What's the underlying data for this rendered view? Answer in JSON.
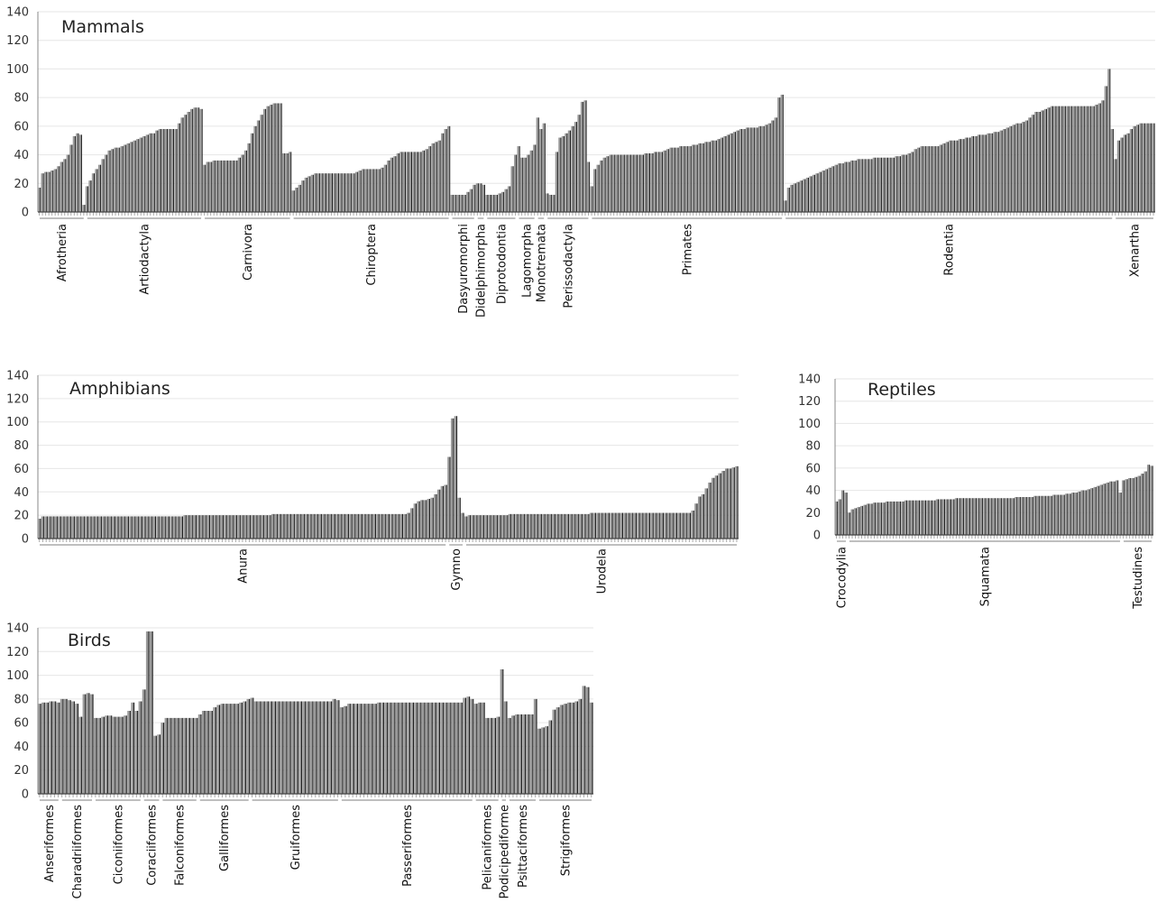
{
  "chart_data": [
    {
      "type": "bar",
      "title": "Mammals",
      "ylim": [
        0,
        140
      ],
      "yticks": [
        0,
        20,
        40,
        60,
        80,
        100,
        120,
        140
      ],
      "grid": true,
      "groups": [
        {
          "name": "Afrotheria",
          "values": [
            17,
            27,
            28,
            28,
            29,
            30,
            32,
            35,
            37,
            40,
            47,
            53,
            55,
            54,
            5
          ]
        },
        {
          "name": "Artiodactyla",
          "values": [
            18,
            22,
            27,
            30,
            33,
            37,
            40,
            43,
            44,
            45,
            45,
            46,
            47,
            48,
            49,
            50,
            51,
            52,
            53,
            54,
            55,
            55,
            57,
            58,
            58,
            58,
            58,
            58,
            58,
            62,
            66,
            68,
            70,
            72,
            73,
            73,
            72
          ]
        },
        {
          "name": "Carnivora",
          "values": [
            33,
            35,
            35,
            36,
            36,
            36,
            36,
            36,
            36,
            36,
            36,
            38,
            40,
            43,
            48,
            55,
            60,
            64,
            68,
            72,
            74,
            75,
            76,
            76,
            76,
            41,
            41,
            42
          ]
        },
        {
          "name": "Chiroptera",
          "values": [
            15,
            17,
            19,
            22,
            24,
            25,
            26,
            27,
            27,
            27,
            27,
            27,
            27,
            27,
            27,
            27,
            27,
            27,
            27,
            27,
            28,
            29,
            30,
            30,
            30,
            30,
            30,
            30,
            31,
            33,
            36,
            38,
            39,
            41,
            42,
            42,
            42,
            42,
            42,
            42,
            42,
            43,
            44,
            46,
            48,
            49,
            50,
            55,
            58,
            60
          ]
        },
        {
          "name": "Dasyuromorphi",
          "values": [
            12,
            12,
            12,
            12,
            12,
            14,
            16,
            19
          ]
        },
        {
          "name": "Didelphimorpha",
          "values": [
            20,
            20,
            19
          ]
        },
        {
          "name": "Diprotodontia",
          "values": [
            12,
            12,
            12,
            12,
            13,
            14,
            16,
            18,
            32,
            40
          ]
        },
        {
          "name": "Lagomorpha",
          "values": [
            46,
            38,
            38,
            40,
            43,
            47
          ]
        },
        {
          "name": "Monotremata",
          "values": [
            66,
            58,
            62
          ]
        },
        {
          "name": "Perissodactyla",
          "values": [
            13,
            12,
            12,
            42,
            52,
            53,
            55,
            57,
            60,
            63,
            68,
            77,
            78,
            35
          ]
        },
        {
          "name": "Primates",
          "values": [
            18,
            30,
            33,
            36,
            38,
            39,
            40,
            40,
            40,
            40,
            40,
            40,
            40,
            40,
            40,
            40,
            40,
            41,
            41,
            41,
            42,
            42,
            42,
            43,
            44,
            45,
            45,
            45,
            46,
            46,
            46,
            46,
            47,
            47,
            48,
            48,
            49,
            49,
            50,
            50,
            51,
            52,
            53,
            54,
            55,
            56,
            57,
            58,
            58,
            59,
            59,
            59,
            59,
            60,
            60,
            61,
            62,
            64,
            66,
            80,
            82
          ]
        },
        {
          "name": "Rodentia",
          "values": [
            8,
            17,
            19,
            20,
            21,
            22,
            23,
            24,
            25,
            26,
            27,
            28,
            29,
            30,
            31,
            32,
            33,
            34,
            34,
            35,
            35,
            36,
            36,
            37,
            37,
            37,
            37,
            37,
            38,
            38,
            38,
            38,
            38,
            38,
            38,
            39,
            39,
            40,
            40,
            41,
            42,
            44,
            45,
            46,
            46,
            46,
            46,
            46,
            46,
            47,
            48,
            49,
            50,
            50,
            50,
            51,
            51,
            52,
            52,
            53,
            53,
            54,
            54,
            54,
            55,
            55,
            56,
            56,
            57,
            58,
            59,
            60,
            61,
            62,
            62,
            63,
            64,
            66,
            68,
            70,
            70,
            71,
            72,
            73,
            74,
            74,
            74,
            74,
            74,
            74,
            74,
            74,
            74,
            74,
            74,
            74,
            74,
            74,
            75,
            76,
            78,
            88,
            100,
            58
          ]
        },
        {
          "name": "Xenartha",
          "values": [
            37,
            50,
            52,
            54,
            55,
            58,
            60,
            61,
            62,
            62,
            62,
            62,
            62
          ]
        }
      ]
    },
    {
      "type": "bar",
      "title": "Amphibians",
      "ylim": [
        0,
        140
      ],
      "yticks": [
        0,
        20,
        40,
        60,
        80,
        100,
        120,
        140
      ],
      "grid": true,
      "groups": [
        {
          "name": "Anura",
          "values": [
            17,
            19,
            19,
            19,
            19,
            19,
            19,
            19,
            19,
            19,
            19,
            19,
            19,
            19,
            19,
            19,
            19,
            19,
            19,
            19,
            19,
            19,
            19,
            19,
            19,
            19,
            19,
            19,
            19,
            19,
            19,
            19,
            19,
            19,
            19,
            19,
            19,
            19,
            19,
            19,
            19,
            19,
            19,
            20,
            20,
            20,
            20,
            20,
            20,
            20,
            20,
            20,
            20,
            20,
            20,
            20,
            20,
            20,
            20,
            20,
            20,
            20,
            20,
            20,
            20,
            20,
            20,
            20,
            20,
            21,
            21,
            21,
            21,
            21,
            21,
            21,
            21,
            21,
            21,
            21,
            21,
            21,
            21,
            21,
            21,
            21,
            21,
            21,
            21,
            21,
            21,
            21,
            21,
            21,
            21,
            21,
            21,
            21,
            21,
            21,
            21,
            21,
            21,
            21,
            21,
            21,
            21,
            21,
            21,
            22,
            26,
            30,
            32,
            33,
            33,
            34,
            35,
            38,
            42,
            45,
            46
          ]
        },
        {
          "name": "Gymno",
          "values": [
            70,
            103,
            105,
            35,
            22
          ]
        },
        {
          "name": "Urodela",
          "values": [
            19,
            20,
            20,
            20,
            20,
            20,
            20,
            20,
            20,
            20,
            20,
            20,
            20,
            21,
            21,
            21,
            21,
            21,
            21,
            21,
            21,
            21,
            21,
            21,
            21,
            21,
            21,
            21,
            21,
            21,
            21,
            21,
            21,
            21,
            21,
            21,
            21,
            22,
            22,
            22,
            22,
            22,
            22,
            22,
            22,
            22,
            22,
            22,
            22,
            22,
            22,
            22,
            22,
            22,
            22,
            22,
            22,
            22,
            22,
            22,
            22,
            22,
            22,
            22,
            22,
            22,
            22,
            24,
            30,
            36,
            38,
            43,
            48,
            52,
            54,
            56,
            58,
            60,
            60,
            61,
            62
          ]
        }
      ]
    },
    {
      "type": "bar",
      "title": "Reptiles",
      "ylim": [
        0,
        140
      ],
      "yticks": [
        0,
        20,
        40,
        60,
        80,
        100,
        120,
        140
      ],
      "grid": true,
      "groups": [
        {
          "name": "Crocodylia",
          "values": [
            30,
            32,
            40,
            38
          ]
        },
        {
          "name": "Squamata",
          "values": [
            20,
            23,
            24,
            25,
            26,
            27,
            28,
            28,
            29,
            29,
            29,
            29,
            30,
            30,
            30,
            30,
            30,
            30,
            31,
            31,
            31,
            31,
            31,
            31,
            31,
            31,
            31,
            31,
            32,
            32,
            32,
            32,
            32,
            32,
            33,
            33,
            33,
            33,
            33,
            33,
            33,
            33,
            33,
            33,
            33,
            33,
            33,
            33,
            33,
            33,
            33,
            33,
            33,
            34,
            34,
            34,
            34,
            34,
            34,
            35,
            35,
            35,
            35,
            35,
            35,
            36,
            36,
            36,
            36,
            37,
            37,
            38,
            38,
            39,
            40,
            40,
            41,
            42,
            43,
            44,
            45,
            46,
            47,
            48,
            48,
            49,
            38
          ]
        },
        {
          "name": "Testudines",
          "values": [
            49,
            50,
            51,
            51,
            52,
            53,
            55,
            57,
            63,
            62
          ]
        }
      ]
    },
    {
      "type": "bar",
      "title": "Birds",
      "ylim": [
        0,
        140
      ],
      "yticks": [
        0,
        20,
        40,
        60,
        80,
        100,
        120,
        140
      ],
      "grid": true,
      "groups": [
        {
          "name": "Anseriformes",
          "values": [
            76,
            77,
            77,
            78,
            78,
            77
          ]
        },
        {
          "name": "Charadriiformes",
          "values": [
            80,
            80,
            79,
            78,
            76,
            65,
            84,
            85,
            84
          ]
        },
        {
          "name": "Ciconiiformes",
          "values": [
            64,
            64,
            65,
            66,
            66,
            65,
            65,
            65,
            66,
            70,
            77,
            70,
            78
          ]
        },
        {
          "name": "Coraciiformes",
          "values": [
            88,
            137,
            137,
            49,
            50
          ]
        },
        {
          "name": "Falconiformes",
          "values": [
            60,
            64,
            64,
            64,
            64,
            64,
            64,
            64,
            64,
            64
          ]
        },
        {
          "name": "Galliformes",
          "values": [
            67,
            70,
            70,
            70,
            73,
            75,
            76,
            76,
            76,
            76,
            76,
            77,
            78,
            80
          ]
        },
        {
          "name": "Gruiformes",
          "values": [
            81,
            78,
            78,
            78,
            78,
            78,
            78,
            78,
            78,
            78,
            78,
            78,
            78,
            78,
            78,
            78,
            78,
            78,
            78,
            78,
            78,
            78,
            80,
            79
          ]
        },
        {
          "name": "Passeriformes",
          "values": [
            73,
            74,
            76,
            76,
            76,
            76,
            76,
            76,
            76,
            76,
            77,
            77,
            77,
            77,
            77,
            77,
            77,
            77,
            77,
            77,
            77,
            77,
            77,
            77,
            77,
            77,
            77,
            77,
            77,
            77,
            77,
            77,
            77,
            81,
            82,
            80
          ]
        },
        {
          "name": "Pelicaniformes",
          "values": [
            76,
            77,
            77,
            64,
            64,
            64,
            65
          ]
        },
        {
          "name": "Podicipediforme",
          "values": [
            105,
            78
          ]
        },
        {
          "name": "Psittaciformes",
          "values": [
            64,
            66,
            67,
            67,
            67,
            67,
            67,
            80
          ]
        },
        {
          "name": "Strigiformes",
          "values": [
            55,
            56,
            57,
            62,
            71,
            73,
            75,
            76,
            77,
            77,
            78,
            80,
            91,
            90,
            77
          ]
        }
      ]
    }
  ]
}
